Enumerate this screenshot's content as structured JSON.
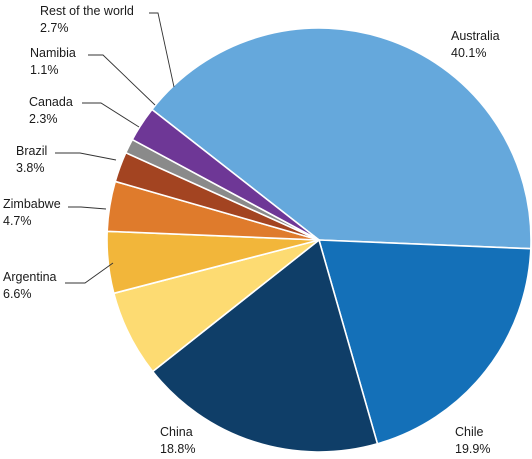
{
  "chart_data": {
    "type": "pie",
    "title": "",
    "unit": "%",
    "slices": [
      {
        "label": "Australia",
        "value": 40.1,
        "value_label": "40.1%",
        "color": "#65a8dc"
      },
      {
        "label": "Chile",
        "value": 19.9,
        "value_label": "19.9%",
        "color": "#1470b8"
      },
      {
        "label": "China",
        "value": 18.8,
        "value_label": "18.8%",
        "color": "#0f3e68"
      },
      {
        "label": "Argentina",
        "value": 6.6,
        "value_label": "6.6%",
        "color": "#fddb72"
      },
      {
        "label": "Zimbabwe",
        "value": 4.7,
        "value_label": "4.7%",
        "color": "#f2b63a"
      },
      {
        "label": "Brazil",
        "value": 3.8,
        "value_label": "3.8%",
        "color": "#df7b2c"
      },
      {
        "label": "Canada",
        "value": 2.3,
        "value_label": "2.3%",
        "color": "#a34421"
      },
      {
        "label": "Namibia",
        "value": 1.1,
        "value_label": "1.1%",
        "color": "#8a8a8a"
      },
      {
        "label": "Rest of the world",
        "value": 2.7,
        "value_label": "2.7%",
        "color": "#6e3796"
      }
    ]
  }
}
